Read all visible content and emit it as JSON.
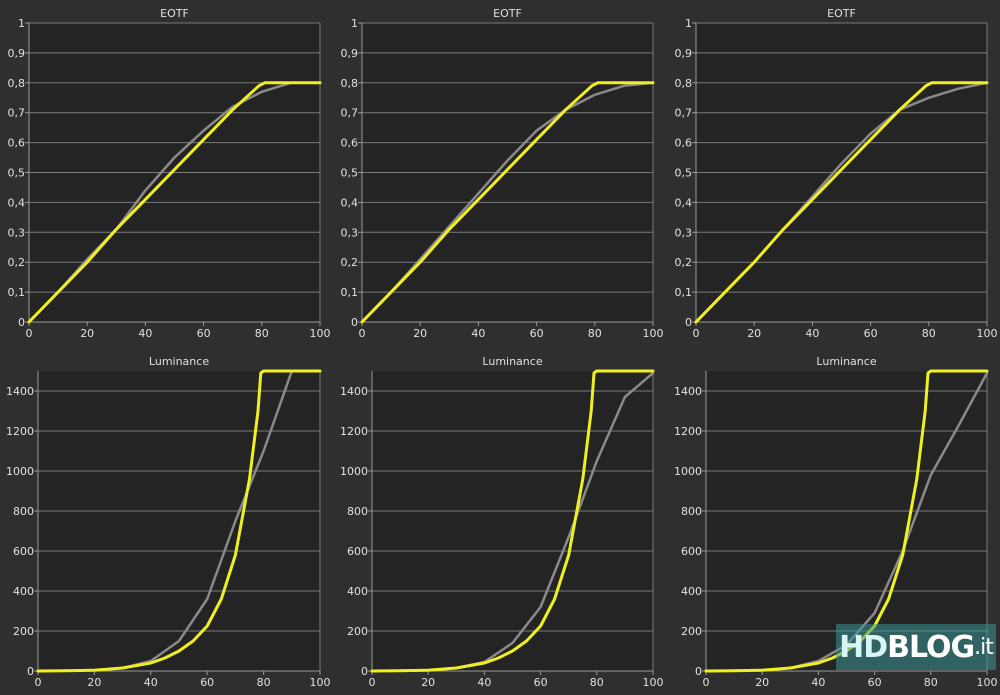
{
  "chart_data": [
    {
      "type": "line",
      "title": "EOTF",
      "xlabel": "",
      "ylabel": "",
      "xlim": [
        0,
        100
      ],
      "ylim": [
        0,
        1
      ],
      "xticks": [
        "0",
        "20",
        "40",
        "60",
        "80",
        "100"
      ],
      "yticks": [
        "0",
        "0,1",
        "0,2",
        "0,3",
        "0,4",
        "0,5",
        "0,6",
        "0,7",
        "0,8",
        "0,9",
        "1"
      ],
      "grid": "horizontal",
      "series": [
        {
          "color": "#8a8a8a",
          "x": [
            0,
            10,
            20,
            30,
            40,
            50,
            60,
            70,
            80,
            90,
            100
          ],
          "y": [
            0.0,
            0.1,
            0.21,
            0.31,
            0.44,
            0.55,
            0.64,
            0.72,
            0.77,
            0.8,
            0.8
          ]
        },
        {
          "color": "#f0f020",
          "x": [
            0,
            10,
            20,
            30,
            40,
            50,
            60,
            70,
            79,
            81,
            100
          ],
          "y": [
            0.0,
            0.1,
            0.2,
            0.31,
            0.41,
            0.51,
            0.61,
            0.71,
            0.79,
            0.8,
            0.8
          ]
        }
      ]
    },
    {
      "type": "line",
      "title": "EOTF",
      "xlabel": "",
      "ylabel": "",
      "xlim": [
        0,
        100
      ],
      "ylim": [
        0,
        1
      ],
      "xticks": [
        "0",
        "20",
        "40",
        "60",
        "80",
        "100"
      ],
      "yticks": [
        "0",
        "0,1",
        "0,2",
        "0,3",
        "0,4",
        "0,5",
        "0,6",
        "0,7",
        "0,8",
        "0,9",
        "1"
      ],
      "grid": "horizontal",
      "series": [
        {
          "color": "#8a8a8a",
          "x": [
            0,
            10,
            20,
            30,
            40,
            50,
            60,
            70,
            80,
            90,
            100
          ],
          "y": [
            0.0,
            0.1,
            0.21,
            0.32,
            0.43,
            0.54,
            0.64,
            0.71,
            0.76,
            0.79,
            0.8
          ]
        },
        {
          "color": "#f0f020",
          "x": [
            0,
            10,
            20,
            30,
            40,
            50,
            60,
            70,
            79,
            81,
            100
          ],
          "y": [
            0.0,
            0.1,
            0.2,
            0.31,
            0.41,
            0.51,
            0.61,
            0.71,
            0.79,
            0.8,
            0.8
          ]
        }
      ]
    },
    {
      "type": "line",
      "title": "EOTF",
      "xlabel": "",
      "ylabel": "",
      "xlim": [
        0,
        100
      ],
      "ylim": [
        0,
        1
      ],
      "xticks": [
        "0",
        "20",
        "40",
        "60",
        "80",
        "100"
      ],
      "yticks": [
        "0",
        "0,1",
        "0,2",
        "0,3",
        "0,4",
        "0,5",
        "0,6",
        "0,7",
        "0,8",
        "0,9",
        "1"
      ],
      "grid": "horizontal",
      "series": [
        {
          "color": "#8a8a8a",
          "x": [
            0,
            10,
            20,
            30,
            40,
            50,
            60,
            70,
            80,
            90,
            100
          ],
          "y": [
            0.0,
            0.1,
            0.2,
            0.31,
            0.42,
            0.53,
            0.63,
            0.71,
            0.75,
            0.78,
            0.8
          ]
        },
        {
          "color": "#f0f020",
          "x": [
            0,
            10,
            20,
            30,
            40,
            50,
            60,
            70,
            79,
            81,
            100
          ],
          "y": [
            0.0,
            0.1,
            0.2,
            0.31,
            0.41,
            0.51,
            0.61,
            0.71,
            0.79,
            0.8,
            0.8
          ]
        }
      ]
    },
    {
      "type": "line",
      "title": "Luminance",
      "xlabel": "",
      "ylabel": "",
      "xlim": [
        0,
        100
      ],
      "ylim": [
        0,
        1500
      ],
      "xticks": [
        "0",
        "20",
        "40",
        "60",
        "80",
        "100"
      ],
      "yticks": [
        "0",
        "200",
        "400",
        "600",
        "800",
        "1000",
        "1200",
        "1400"
      ],
      "grid": "horizontal",
      "series": [
        {
          "color": "#8a8a8a",
          "x": [
            0,
            10,
            20,
            30,
            40,
            50,
            60,
            70,
            80,
            90,
            100
          ],
          "y": [
            0,
            2,
            5,
            15,
            50,
            150,
            360,
            750,
            1100,
            1500,
            1500
          ]
        },
        {
          "color": "#f0f020",
          "x": [
            0,
            10,
            20,
            30,
            40,
            45,
            50,
            55,
            60,
            65,
            70,
            75,
            78,
            79,
            80,
            100
          ],
          "y": [
            0,
            1,
            4,
            15,
            40,
            65,
            100,
            150,
            225,
            360,
            580,
            960,
            1300,
            1490,
            1500,
            1500
          ]
        }
      ]
    },
    {
      "type": "line",
      "title": "Luminance",
      "xlabel": "",
      "ylabel": "",
      "xlim": [
        0,
        100
      ],
      "ylim": [
        0,
        1500
      ],
      "xticks": [
        "0",
        "20",
        "40",
        "60",
        "80",
        "100"
      ],
      "yticks": [
        "0",
        "200",
        "400",
        "600",
        "800",
        "1000",
        "1200",
        "1400"
      ],
      "grid": "horizontal",
      "series": [
        {
          "color": "#8a8a8a",
          "x": [
            0,
            10,
            20,
            30,
            40,
            50,
            60,
            70,
            80,
            90,
            100
          ],
          "y": [
            0,
            2,
            5,
            15,
            45,
            140,
            320,
            670,
            1050,
            1370,
            1490
          ]
        },
        {
          "color": "#f0f020",
          "x": [
            0,
            10,
            20,
            30,
            40,
            45,
            50,
            55,
            60,
            65,
            70,
            75,
            78,
            79,
            80,
            100
          ],
          "y": [
            0,
            1,
            4,
            15,
            40,
            65,
            100,
            150,
            225,
            360,
            580,
            960,
            1300,
            1490,
            1500,
            1500
          ]
        }
      ]
    },
    {
      "type": "line",
      "title": "Luminance",
      "xlabel": "",
      "ylabel": "",
      "xlim": [
        0,
        100
      ],
      "ylim": [
        0,
        1500
      ],
      "xticks": [
        "0",
        "20",
        "40",
        "60",
        "80",
        "100"
      ],
      "yticks": [
        "0",
        "200",
        "400",
        "600",
        "800",
        "1000",
        "1200",
        "1400"
      ],
      "grid": "horizontal",
      "series": [
        {
          "color": "#8a8a8a",
          "x": [
            0,
            10,
            20,
            30,
            40,
            50,
            60,
            70,
            80,
            90,
            100
          ],
          "y": [
            0,
            2,
            5,
            15,
            50,
            130,
            290,
            600,
            980,
            1230,
            1490
          ]
        },
        {
          "color": "#f0f020",
          "x": [
            0,
            10,
            20,
            30,
            40,
            45,
            50,
            55,
            60,
            65,
            70,
            75,
            78,
            79,
            80,
            100
          ],
          "y": [
            0,
            1,
            4,
            15,
            40,
            65,
            100,
            150,
            225,
            360,
            580,
            960,
            1300,
            1490,
            1500,
            1500
          ]
        }
      ]
    }
  ],
  "watermark": {
    "hd": "HD",
    "blog": "BLOG",
    "it": ".it"
  }
}
